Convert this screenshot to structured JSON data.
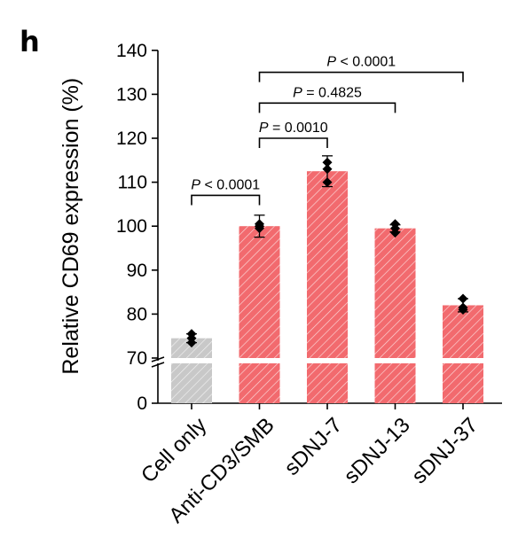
{
  "panel_label": "h",
  "chart_data": {
    "type": "bar",
    "title": "",
    "xlabel": "",
    "ylabel": "Relative CD69 expression (%)",
    "ylim": [
      0,
      140
    ],
    "axis_break": {
      "below": 68,
      "resumes_at": 70
    },
    "yticks": [
      0,
      70,
      80,
      90,
      100,
      110,
      120,
      130,
      140
    ],
    "categories": [
      "Cell only",
      "Anti-CD3/SMB",
      "sDNJ-7",
      "sDNJ-13",
      "sDNJ-37"
    ],
    "values": [
      74.5,
      100,
      112.5,
      99.5,
      82
    ],
    "errors": [
      1.0,
      2.5,
      3.5,
      0.8,
      1.5
    ],
    "points": [
      [
        73.5,
        74.5,
        75.5
      ],
      [
        99.5,
        100,
        100.5
      ],
      [
        110,
        113,
        114.5
      ],
      [
        98.5,
        99.5,
        100.5
      ],
      [
        81,
        81.5,
        83.5
      ]
    ],
    "colors": [
      "#c8c8c8",
      "#f26a6e",
      "#f26a6e",
      "#f26a6e",
      "#f26a6e"
    ],
    "significance": [
      {
        "from": 0,
        "to": 1,
        "label_prefix": "P",
        "label_suffix": " < 0.0001",
        "y": 107
      },
      {
        "from": 1,
        "to": 2,
        "label_prefix": "P",
        "label_suffix": " = 0.0010",
        "y": 120
      },
      {
        "from": 1,
        "to": 3,
        "label_prefix": "P",
        "label_suffix": " = 0.4825",
        "y": 128
      },
      {
        "from": 1,
        "to": 4,
        "label_prefix": "P",
        "label_suffix": " < 0.0001",
        "y": 135
      }
    ]
  }
}
